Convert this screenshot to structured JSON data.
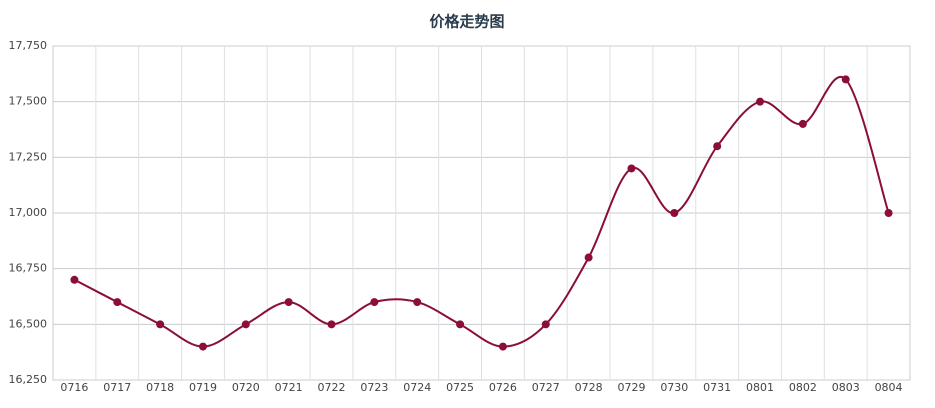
{
  "chart_data": {
    "type": "line",
    "title": "价格走势图",
    "categories": [
      "0716",
      "0717",
      "0718",
      "0719",
      "0720",
      "0721",
      "0722",
      "0723",
      "0724",
      "0725",
      "0726",
      "0727",
      "0728",
      "0729",
      "0730",
      "0731",
      "0801",
      "0802",
      "0803",
      "0804"
    ],
    "values": [
      16700,
      16600,
      16500,
      16400,
      16500,
      16600,
      16500,
      16600,
      16600,
      16500,
      16400,
      16500,
      16800,
      17200,
      17000,
      17300,
      17500,
      17400,
      17600,
      17000
    ],
    "color": "#8b0d3a",
    "ylim": [
      16250,
      17750
    ],
    "yticks": [
      {
        "value": 16250,
        "label": "16,250"
      },
      {
        "value": 16500,
        "label": "16,500"
      },
      {
        "value": 16750,
        "label": "16,750"
      },
      {
        "value": 17000,
        "label": "17,000"
      },
      {
        "value": 17250,
        "label": "17,250"
      },
      {
        "value": 17500,
        "label": "17,500"
      },
      {
        "value": 17750,
        "label": "17,750"
      }
    ],
    "grid": true,
    "smooth": true
  }
}
